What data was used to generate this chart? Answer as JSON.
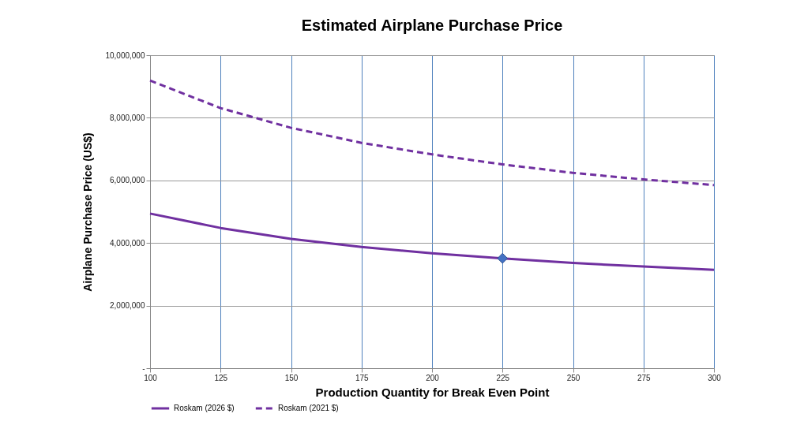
{
  "chart_data": {
    "type": "line",
    "title": "Estimated Airplane Purchase Price",
    "xlabel": "Production Quantity for Break Even Point",
    "ylabel": "Airplane Purchase Price (US$)",
    "x": [
      100,
      125,
      150,
      175,
      200,
      225,
      250,
      275,
      300
    ],
    "series": [
      {
        "name": "Roskam (2026 $)",
        "color": "#7030a0",
        "line_style": "solid",
        "values": [
          4940000,
          4480000,
          4130000,
          3870000,
          3670000,
          3510000,
          3360000,
          3250000,
          3140000
        ]
      },
      {
        "name": "Roskam (2021 $)",
        "color": "#7030a0",
        "line_style": "dashed",
        "values": [
          9190000,
          8310000,
          7680000,
          7200000,
          6830000,
          6510000,
          6240000,
          6030000,
          5850000
        ]
      },
      {
        "type": "scatter",
        "marker": "diamond",
        "color": "#4472c4",
        "x": [
          225
        ],
        "values": [
          3510000
        ]
      }
    ],
    "xlim": [
      100,
      300
    ],
    "xticks": [
      100,
      125,
      150,
      175,
      200,
      225,
      250,
      275,
      300
    ],
    "ylim": [
      0,
      10000000
    ],
    "yticks": [
      {
        "value": 0,
        "label": "-"
      },
      {
        "value": 2000000,
        "label": "2,000,000"
      },
      {
        "value": 4000000,
        "label": "4,000,000"
      },
      {
        "value": 6000000,
        "label": "6,000,000"
      },
      {
        "value": 8000000,
        "label": "8,000,000"
      },
      {
        "value": 10000000,
        "label": "10,000,000"
      }
    ],
    "grid": true,
    "legend": "bottom"
  }
}
